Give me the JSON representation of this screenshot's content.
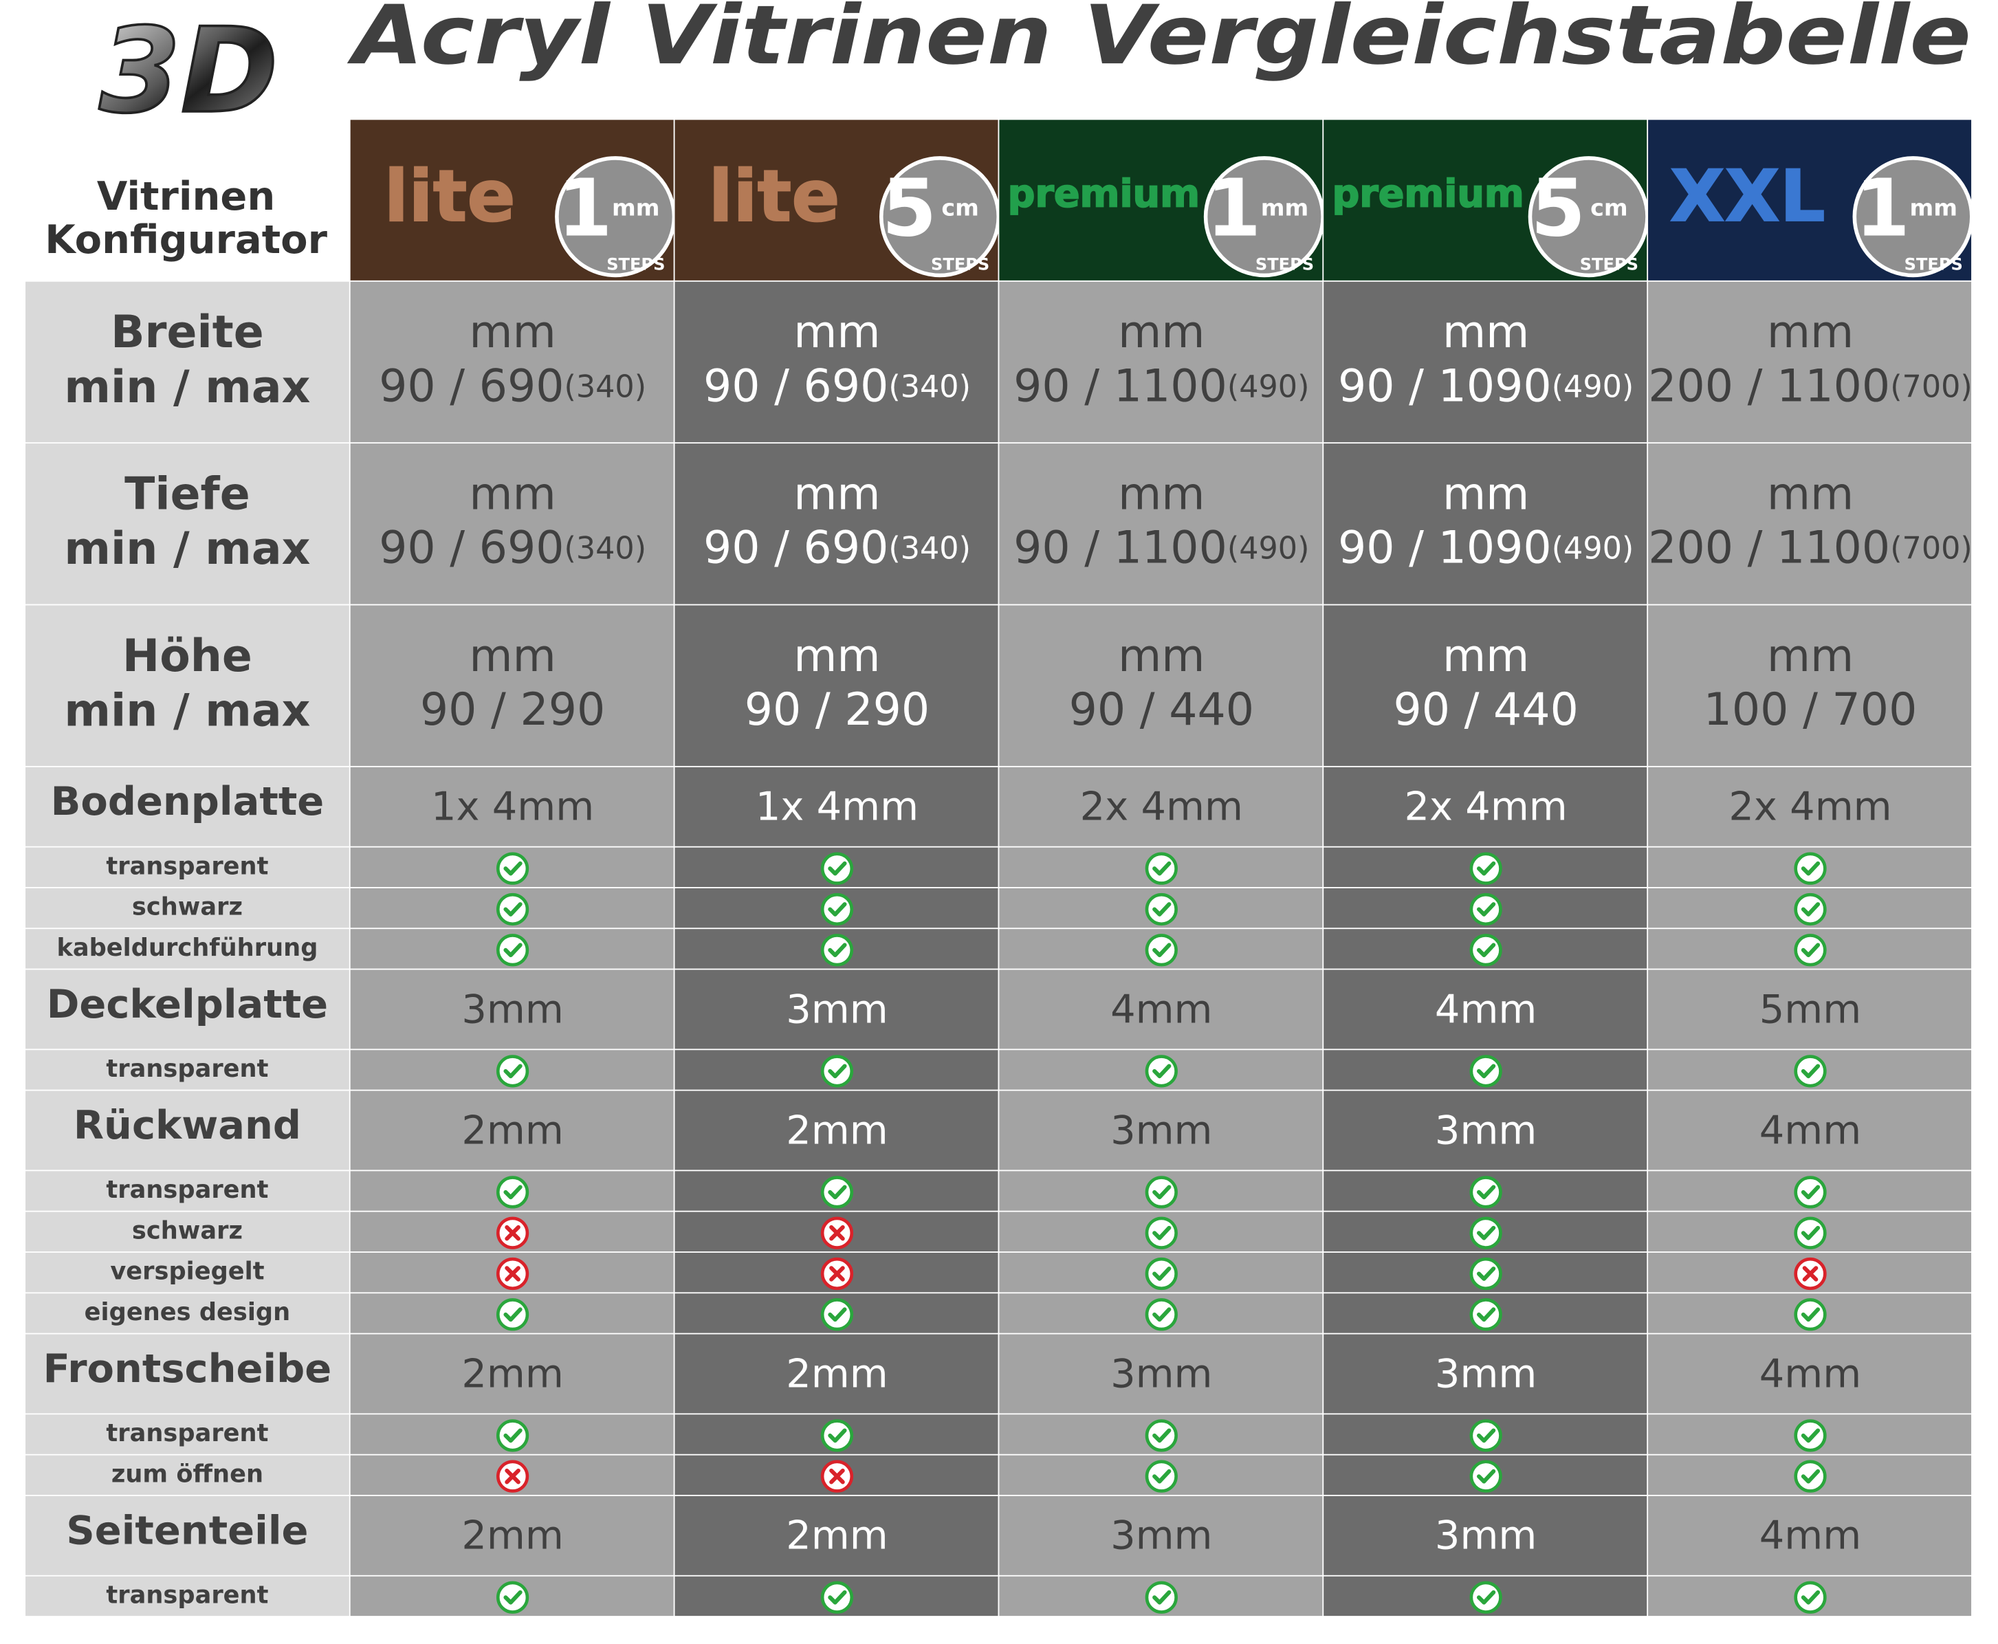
{
  "header": {
    "title": "Acryl Vitrinen Vergleichstabelle"
  },
  "logo": {
    "mark": "3D",
    "line1": "Vitrinen",
    "line2": "Konfigurator"
  },
  "columns": [
    {
      "name": "lite",
      "step": "1",
      "unit": "mm",
      "steps": "STEPS",
      "band": "#4e3220",
      "color": "#b47a56"
    },
    {
      "name": "lite",
      "step": "5",
      "unit": "cm",
      "steps": "STEPS",
      "band": "#4e3220",
      "color": "#b47a56"
    },
    {
      "name": "premium",
      "step": "1",
      "unit": "mm",
      "steps": "STEPS",
      "band": "#0c3a1c",
      "color": "#22a04c"
    },
    {
      "name": "premium",
      "step": "5",
      "unit": "cm",
      "steps": "STEPS",
      "band": "#0c3a1c",
      "color": "#22a04c"
    },
    {
      "name": "XXL",
      "step": "1",
      "unit": "mm",
      "steps": "STEPS",
      "band": "#13264a",
      "color": "#3a78d2"
    }
  ],
  "rows": [
    {
      "label": [
        "Breite",
        "min / max"
      ],
      "cells": [
        {
          "unit": "mm",
          "value": "90 / 690",
          "extra": "(340)"
        },
        {
          "unit": "mm",
          "value": "90 / 690",
          "extra": "(340)"
        },
        {
          "unit": "mm",
          "value": "90 / 1100",
          "extra": "(490)"
        },
        {
          "unit": "mm",
          "value": "90 / 1090",
          "extra": "(490)"
        },
        {
          "unit": "mm",
          "value": "200 / 1100",
          "extra": "(700)"
        }
      ]
    },
    {
      "label": [
        "Tiefe",
        "min / max"
      ],
      "cells": [
        {
          "unit": "mm",
          "value": "90 / 690",
          "extra": "(340)"
        },
        {
          "unit": "mm",
          "value": "90 / 690",
          "extra": "(340)"
        },
        {
          "unit": "mm",
          "value": "90 / 1100",
          "extra": "(490)"
        },
        {
          "unit": "mm",
          "value": "90 / 1090",
          "extra": "(490)"
        },
        {
          "unit": "mm",
          "value": "200 / 1100",
          "extra": "(700)"
        }
      ]
    },
    {
      "label": [
        "Höhe",
        "min / max"
      ],
      "cells": [
        {
          "unit": "mm",
          "value": "90 / 290"
        },
        {
          "unit": "mm",
          "value": "90 / 290"
        },
        {
          "unit": "mm",
          "value": "90 / 440"
        },
        {
          "unit": "mm",
          "value": "90 / 440"
        },
        {
          "unit": "mm",
          "value": "100 / 700"
        }
      ]
    },
    {
      "label": [
        "Bodenplatte"
      ],
      "cells": [
        "1x 4mm",
        "1x 4mm",
        "2x 4mm",
        "2x 4mm",
        "2x 4mm"
      ]
    },
    {
      "label": [
        "transparent"
      ],
      "checks": [
        true,
        true,
        true,
        true,
        true
      ]
    },
    {
      "label": [
        "schwarz"
      ],
      "checks": [
        true,
        true,
        true,
        true,
        true
      ]
    },
    {
      "label": [
        "kabeldurchführung"
      ],
      "checks": [
        true,
        true,
        true,
        true,
        true
      ]
    },
    {
      "label": [
        "Deckelplatte"
      ],
      "cells": [
        "3mm",
        "3mm",
        "4mm",
        "4mm",
        "5mm"
      ]
    },
    {
      "label": [
        "transparent"
      ],
      "checks": [
        true,
        true,
        true,
        true,
        true
      ]
    },
    {
      "label": [
        "Rückwand"
      ],
      "cells": [
        "2mm",
        "2mm",
        "3mm",
        "3mm",
        "4mm"
      ]
    },
    {
      "label": [
        "transparent"
      ],
      "checks": [
        true,
        true,
        true,
        true,
        true
      ]
    },
    {
      "label": [
        "schwarz"
      ],
      "checks": [
        false,
        false,
        true,
        true,
        true
      ]
    },
    {
      "label": [
        "verspiegelt"
      ],
      "checks": [
        false,
        false,
        true,
        true,
        false
      ]
    },
    {
      "label": [
        "eigenes design"
      ],
      "checks": [
        true,
        true,
        true,
        true,
        true
      ]
    },
    {
      "label": [
        "Frontscheibe"
      ],
      "cells": [
        "2mm",
        "2mm",
        "3mm",
        "3mm",
        "4mm"
      ]
    },
    {
      "label": [
        "transparent"
      ],
      "checks": [
        true,
        true,
        true,
        true,
        true
      ]
    },
    {
      "label": [
        "zum öffnen"
      ],
      "checks": [
        false,
        false,
        true,
        true,
        true
      ]
    },
    {
      "label": [
        "Seitenteile"
      ],
      "cells": [
        "2mm",
        "2mm",
        "3mm",
        "3mm",
        "4mm"
      ]
    },
    {
      "label": [
        "transparent"
      ],
      "checks": [
        true,
        true,
        true,
        true,
        true
      ]
    }
  ]
}
